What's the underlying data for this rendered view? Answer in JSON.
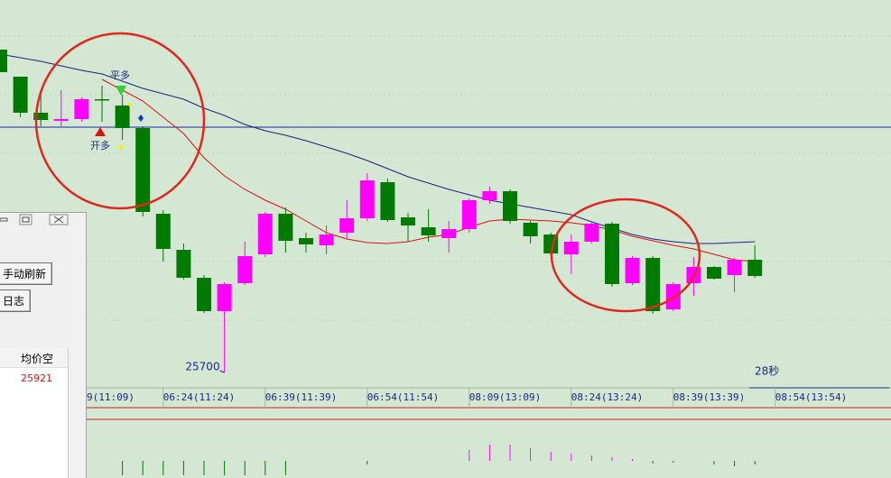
{
  "chart_data": {
    "type": "candlestick",
    "open": [
      26058,
      26028,
      25988,
      25979,
      25981,
      26003,
      25996,
      25971,
      25876,
      25836,
      25805,
      25768,
      25799,
      25831,
      25876,
      25849,
      25841,
      25855,
      25871,
      25911,
      25872,
      25861,
      25849,
      25859,
      25891,
      25901,
      25866,
      25853,
      25831,
      25845,
      25865,
      25799,
      25827,
      25770,
      25799,
      25817,
      25808,
      25825
    ],
    "close": [
      26033,
      25988,
      25980,
      25981,
      26003,
      26002,
      25971,
      25878,
      25837,
      25805,
      25768,
      25798,
      25829,
      25876,
      25846,
      25842,
      25853,
      25871,
      25913,
      25869,
      25863,
      25852,
      25859,
      25891,
      25901,
      25868,
      25851,
      25832,
      25845,
      25865,
      25798,
      25827,
      25768,
      25798,
      25817,
      25804,
      25825,
      25807
    ],
    "high": [
      26058,
      26028,
      26013,
      26013,
      26005,
      26018,
      26008,
      25973,
      25880,
      25843,
      25808,
      25800,
      25845,
      25878,
      25883,
      25855,
      25863,
      25891,
      25921,
      25915,
      25877,
      25881,
      25868,
      25893,
      25906,
      25903,
      25868,
      25855,
      25853,
      25868,
      25867,
      25829,
      25829,
      25800,
      25828,
      25818,
      25827,
      25841
    ],
    "low": [
      26033,
      25983,
      25973,
      25973,
      25978,
      25978,
      25958,
      25873,
      25823,
      25803,
      25766,
      25700,
      25797,
      25828,
      25833,
      25833,
      25831,
      25848,
      25868,
      25867,
      25845,
      25845,
      25833,
      25855,
      25887,
      25865,
      25843,
      25829,
      25809,
      25843,
      25795,
      25797,
      25765,
      25768,
      25785,
      25803,
      25789,
      25805
    ],
    "up_color": "#ff00ff",
    "down_color": "#007a00",
    "series": [
      {
        "color": "#1a237e",
        "values": [
          26053,
          26049,
          26045,
          26040,
          26035,
          26031,
          26023,
          26015,
          26009,
          26003,
          25993,
          25985,
          25975,
          25968,
          25963,
          25957,
          25950,
          25943,
          25935,
          25926,
          25917,
          25910,
          25903,
          25897,
          25891,
          25887,
          25883,
          25879,
          25875,
          25867,
          25860,
          25853,
          25848,
          25845,
          25843,
          25843,
          25844,
          25845
        ]
      },
      {
        "color": "#e01010",
        "values": [
          null,
          null,
          null,
          null,
          null,
          26025,
          26013,
          26001,
          25983,
          25965,
          25938,
          25918,
          25903,
          25891,
          25881,
          25868,
          25855,
          25848,
          25844,
          25843,
          25845,
          25850,
          25853,
          25861,
          25868,
          25870,
          25869,
          25868,
          25866,
          25863,
          25858,
          25851,
          25846,
          25841,
          25837,
          25831,
          25825,
          25823
        ]
      }
    ],
    "hline": 25972,
    "hline_color": "#1a2ab0",
    "ylim": [
      25693,
      26113
    ],
    "xticks": [
      {
        "value": 3,
        "label": "9(11:09)"
      },
      {
        "value": 8,
        "label": "06:24(11:24)"
      },
      {
        "value": 13,
        "label": "06:39(11:39)"
      },
      {
        "value": 18,
        "label": "06:54(11:54)"
      },
      {
        "value": 23,
        "label": "08:09(13:09)"
      },
      {
        "value": 28,
        "label": "08:24(13:24)"
      },
      {
        "value": 33,
        "label": "08:39(13:39)"
      },
      {
        "value": 38,
        "label": "08:54(13:54)"
      }
    ],
    "indicator": [
      null,
      null,
      null,
      null,
      null,
      null,
      -16,
      -16,
      -16,
      -16,
      -16,
      -16,
      -16,
      -16,
      -16,
      null,
      null,
      null,
      -4,
      null,
      null,
      null,
      null,
      12,
      18,
      18,
      14,
      10,
      8,
      6,
      4,
      2,
      -3,
      -2,
      null,
      -4,
      -6,
      -4
    ],
    "indicator_ylim": [
      -18,
      41
    ]
  },
  "timer": "28秒",
  "signals": [
    "开多",
    "平多"
  ],
  "panel": {
    "buttons": [
      "手动刷新",
      "日志"
    ],
    "table": {
      "header": [
        "均价空"
      ],
      "rows": [
        [
          "25921"
        ]
      ]
    }
  }
}
